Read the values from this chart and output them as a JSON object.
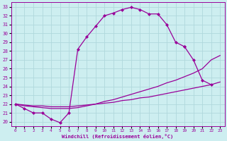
{
  "xlabel": "Windchill (Refroidissement éolien,°C)",
  "bg_color": "#cdeef0",
  "line_color": "#990099",
  "grid_color": "#b0d8dc",
  "xlim": [
    -0.5,
    23.5
  ],
  "ylim": [
    19.5,
    33.5
  ],
  "xticks": [
    0,
    1,
    2,
    3,
    4,
    5,
    6,
    7,
    8,
    9,
    10,
    11,
    12,
    13,
    14,
    15,
    16,
    17,
    18,
    19,
    20,
    21,
    22,
    23
  ],
  "yticks": [
    20,
    21,
    22,
    23,
    24,
    25,
    26,
    27,
    28,
    29,
    30,
    31,
    32,
    33
  ],
  "curve1_x": [
    0,
    1,
    2,
    3,
    4,
    5,
    6,
    7,
    8,
    9,
    10,
    11,
    12,
    13,
    14,
    15,
    16,
    17,
    18,
    19
  ],
  "curve1_y": [
    22.0,
    21.5,
    21.0,
    21.0,
    20.3,
    19.9,
    21.0,
    28.2,
    29.6,
    30.8,
    32.0,
    32.3,
    32.7,
    32.95,
    32.7,
    32.2,
    32.2,
    31.0,
    29.0,
    28.5
  ],
  "curve2_x": [
    19,
    20,
    21,
    22
  ],
  "curve2_y": [
    28.5,
    27.0,
    24.7,
    24.2
  ],
  "diag1_x": [
    0,
    1,
    2,
    3,
    4,
    5,
    6,
    7,
    8,
    9,
    10,
    11,
    12,
    13,
    14,
    15,
    16,
    17,
    18,
    19,
    20,
    21,
    22,
    23
  ],
  "diag1_y": [
    22.0,
    21.8,
    21.7,
    21.6,
    21.5,
    21.5,
    21.5,
    21.6,
    21.8,
    22.0,
    22.3,
    22.5,
    22.8,
    23.1,
    23.4,
    23.7,
    24.0,
    24.4,
    24.7,
    25.1,
    25.5,
    26.0,
    27.0,
    27.5
  ],
  "diag2_x": [
    0,
    1,
    2,
    3,
    4,
    5,
    6,
    7,
    8,
    9,
    10,
    11,
    12,
    13,
    14,
    15,
    16,
    17,
    18,
    19,
    20,
    21,
    22,
    23
  ],
  "diag2_y": [
    22.0,
    21.9,
    21.8,
    21.8,
    21.7,
    21.7,
    21.7,
    21.8,
    21.9,
    22.0,
    22.1,
    22.2,
    22.4,
    22.5,
    22.7,
    22.8,
    23.0,
    23.2,
    23.4,
    23.6,
    23.8,
    24.0,
    24.2,
    24.5
  ]
}
